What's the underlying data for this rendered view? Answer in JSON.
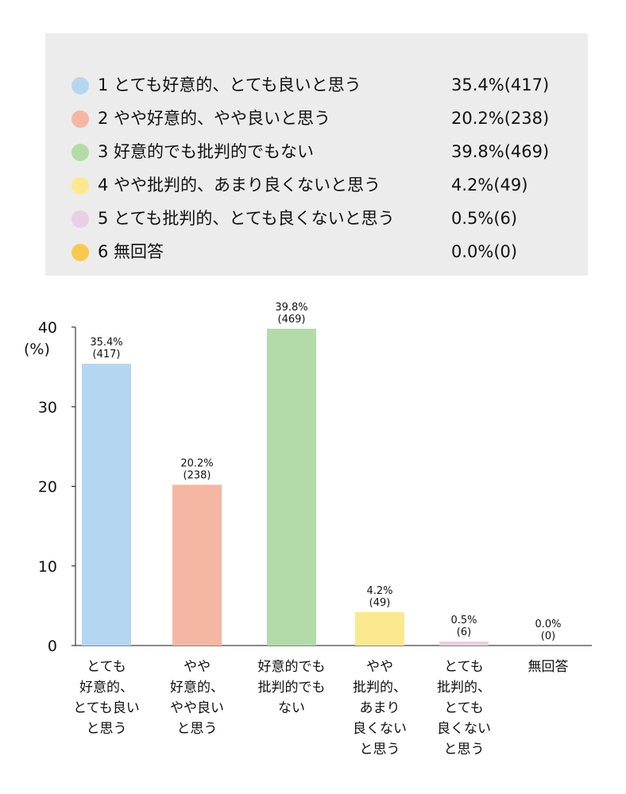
{
  "legend": [
    {
      "label": "1 とても好意的、とても良いと思う",
      "value": "35.4%(417)",
      "color": "#b5d6f1"
    },
    {
      "label": "2 やや好意的、やや良いと思う",
      "value": "20.2%(238)",
      "color": "#f5b7a3"
    },
    {
      "label": "3 好意的でも批判的でもない",
      "value": "39.8%(469)",
      "color": "#b3dbaa"
    },
    {
      "label": "4 やや批判的、あまり良くないと思う",
      "value": "4.2%(49)",
      "color": "#fbe98f"
    },
    {
      "label": "5 とても批判的、とても良くないと思う",
      "value": "0.5%(6)",
      "color": "#e8cfe6"
    },
    {
      "label": "6 無回答",
      "value": "0.0%(0)",
      "color": "#f8c94f"
    }
  ],
  "chart_data": {
    "type": "bar",
    "ylabel": "(%)",
    "ylim": [
      0,
      40
    ],
    "yticks": [
      "0",
      "10",
      "20",
      "30",
      "40"
    ],
    "categories": [
      [
        "とても",
        "好意的、",
        "とても良い",
        "と思う"
      ],
      [
        "やや",
        "好意的、",
        "やや良い",
        "と思う"
      ],
      [
        "好意的でも",
        "批判的でも",
        "ない"
      ],
      [
        "やや",
        "批判的、",
        "あまり",
        "良くない",
        "と思う"
      ],
      [
        "とても",
        "批判的、",
        "とても",
        "良くない",
        "と思う"
      ],
      [
        "無回答"
      ]
    ],
    "values": [
      35.4,
      20.2,
      39.8,
      4.2,
      0.5,
      0.0
    ],
    "data_labels": [
      [
        "35.4%",
        "(417)"
      ],
      [
        "20.2%",
        "(238)"
      ],
      [
        "39.8%",
        "(469)"
      ],
      [
        "4.2%",
        "(49)"
      ],
      [
        "0.5%",
        "(6)"
      ],
      [
        "0.0%",
        "(0)"
      ]
    ],
    "colors": [
      "#b5d6f1",
      "#f5b7a3",
      "#b3dbaa",
      "#fbe98f",
      "#e8cfe6",
      "#f8c94f"
    ]
  }
}
